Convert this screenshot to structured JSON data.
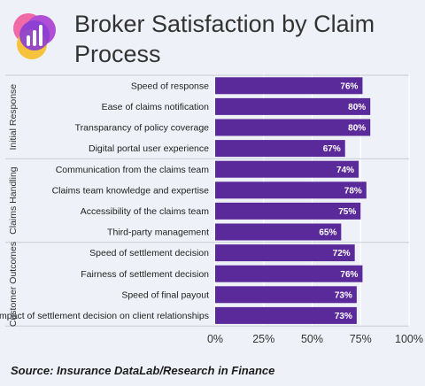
{
  "title": "Broker Satisfaction by Claim Process",
  "source": "Source: Insurance DataLab/Research in Finance",
  "logo_icon": "bar-chart-logo-icon",
  "colors": {
    "bar": "#5b2a9a",
    "grid": "#ffffff",
    "background": "#eef1f7"
  },
  "chart_data": {
    "type": "bar",
    "orientation": "horizontal",
    "title": "Broker Satisfaction by Claim Process",
    "xlabel": "",
    "ylabel": "",
    "xlim": [
      0,
      100
    ],
    "x_ticks": [
      "0%",
      "25%",
      "50%",
      "75%",
      "100%"
    ],
    "grid": true,
    "groups": [
      {
        "name": "Initial Response",
        "items": [
          {
            "label": "Speed of response",
            "value": 76,
            "value_label": "76%"
          },
          {
            "label": "Ease of claims notification",
            "value": 80,
            "value_label": "80%"
          },
          {
            "label": "Transparancy of policy coverage",
            "value": 80,
            "value_label": "80%"
          },
          {
            "label": "Digital portal user experience",
            "value": 67,
            "value_label": "67%"
          }
        ]
      },
      {
        "name": "Claims Handling",
        "items": [
          {
            "label": "Communication from the claims team",
            "value": 74,
            "value_label": "74%"
          },
          {
            "label": "Claims team knowledge and expertise",
            "value": 78,
            "value_label": "78%"
          },
          {
            "label": "Accessibility of the claims team",
            "value": 75,
            "value_label": "75%"
          },
          {
            "label": "Third-party management",
            "value": 65,
            "value_label": "65%"
          }
        ]
      },
      {
        "name": "Customer Outcomes",
        "items": [
          {
            "label": "Speed of settlement decision",
            "value": 72,
            "value_label": "72%"
          },
          {
            "label": "Fairness of settlement decision",
            "value": 76,
            "value_label": "76%"
          },
          {
            "label": "Speed of final payout",
            "value": 73,
            "value_label": "73%"
          },
          {
            "label": "Impact of settlement decision on client relationships",
            "value": 73,
            "value_label": "73%"
          }
        ]
      }
    ]
  }
}
